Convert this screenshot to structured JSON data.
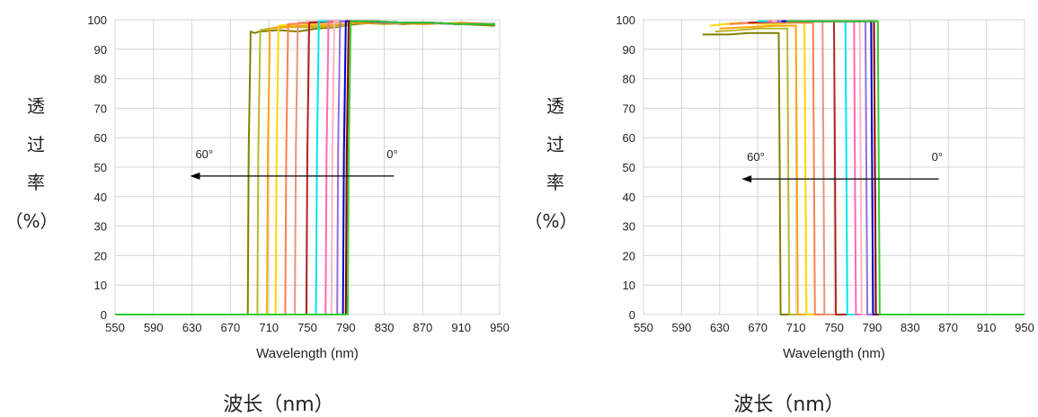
{
  "labels": {
    "y_side": [
      "透",
      "过",
      "率",
      "（%）"
    ],
    "bottom": "波长（nm）"
  },
  "chart_data": [
    {
      "type": "line",
      "title": "",
      "xlabel": "Wavelength (nm)",
      "ylabel": "",
      "xlim": [
        550,
        950
      ],
      "ylim": [
        0,
        100
      ],
      "x_ticks": [
        550,
        590,
        630,
        670,
        710,
        750,
        790,
        830,
        870,
        910,
        950
      ],
      "y_ticks": [
        0,
        10,
        20,
        30,
        40,
        50,
        60,
        70,
        80,
        90,
        100
      ],
      "grid": true,
      "annotations": {
        "arrow_from_label": "0°",
        "arrow_to_label": "60°",
        "arrow_y": 47,
        "arrow_x_start": 840,
        "arrow_x_end": 628
      },
      "series": [
        {
          "color": "#808000",
          "x": [
            550,
            688,
            689,
            691,
            695,
            700,
            720,
            740,
            760,
            780,
            800,
            820,
            850,
            880,
            910,
            945
          ],
          "y": [
            0,
            0,
            55,
            96,
            95.5,
            96,
            96.5,
            96,
            97,
            97.5,
            98.5,
            99,
            98.5,
            99,
            98.5,
            98
          ]
        },
        {
          "color": "#b8b82e",
          "x": [
            550,
            698,
            699,
            701,
            710,
            730,
            760,
            790,
            800,
            830,
            870,
            910,
            945
          ],
          "y": [
            0,
            0,
            55,
            96.5,
            97,
            97.5,
            97.5,
            98,
            99,
            98.5,
            99,
            98.5,
            98.5
          ]
        },
        {
          "color": "#ffa500",
          "x": [
            550,
            708,
            709,
            711,
            720,
            750,
            790,
            800,
            830,
            870,
            910,
            945
          ],
          "y": [
            0,
            0,
            55,
            97,
            97.5,
            98,
            98.5,
            99,
            99,
            98.5,
            99,
            98.5
          ]
        },
        {
          "color": "#ffd700",
          "x": [
            550,
            717,
            718,
            720,
            740,
            770,
            800,
            830,
            870,
            910,
            945
          ],
          "y": [
            0,
            0,
            55,
            98,
            98.5,
            99,
            99.5,
            99,
            99,
            98.5,
            98.5
          ]
        },
        {
          "color": "#ff7f50",
          "x": [
            550,
            727,
            728,
            730,
            760,
            800,
            830,
            870,
            910,
            945
          ],
          "y": [
            0,
            0,
            55,
            98.5,
            99,
            99.5,
            99,
            99,
            98.5,
            98.5
          ]
        },
        {
          "color": "#e9967a",
          "x": [
            550,
            737,
            738,
            740,
            770,
            800,
            830,
            870,
            910,
            945
          ],
          "y": [
            0,
            0,
            55,
            99,
            99.5,
            99.5,
            99,
            99,
            98.5,
            98.5
          ]
        },
        {
          "color": "#b22222",
          "x": [
            550,
            749,
            750,
            752,
            780,
            800,
            830,
            870,
            910,
            945
          ],
          "y": [
            0,
            0,
            55,
            99,
            99.5,
            99.5,
            99,
            99,
            98.5,
            98.5
          ]
        },
        {
          "color": "#00e5ee",
          "x": [
            550,
            759,
            760,
            762,
            790,
            810,
            840,
            870,
            910,
            945
          ],
          "y": [
            0,
            0,
            55,
            99.5,
            99.5,
            99.5,
            99,
            99,
            98.5,
            98.5
          ]
        },
        {
          "color": "#ff69b4",
          "x": [
            550,
            769,
            770,
            772,
            790,
            810,
            840,
            870,
            910,
            945
          ],
          "y": [
            0,
            0,
            55,
            99.5,
            99.5,
            99.5,
            99,
            99,
            98.5,
            98.5
          ]
        },
        {
          "color": "#ffb6c1",
          "x": [
            550,
            775,
            776,
            778,
            790,
            810,
            840,
            870,
            910,
            945
          ],
          "y": [
            0,
            0,
            55,
            99.5,
            99.5,
            99.5,
            99,
            99,
            98.5,
            98.5
          ]
        },
        {
          "color": "#9370db",
          "x": [
            550,
            781,
            782,
            784,
            790,
            810,
            840,
            870,
            910,
            945
          ],
          "y": [
            0,
            0,
            55,
            99.5,
            99.5,
            99.5,
            99,
            99,
            98.5,
            98.5
          ]
        },
        {
          "color": "#0000cd",
          "x": [
            550,
            787,
            788,
            790,
            800,
            820,
            850,
            880,
            910,
            945
          ],
          "y": [
            0,
            0,
            55,
            99.5,
            99.5,
            99.5,
            99,
            99,
            98.5,
            98.5
          ]
        },
        {
          "color": "#8b0000",
          "x": [
            550,
            790,
            791,
            793,
            805,
            820,
            850,
            880,
            910,
            945
          ],
          "y": [
            0,
            0,
            55,
            99.5,
            99.5,
            99.5,
            99,
            99,
            98.5,
            98.5
          ]
        },
        {
          "color": "#32cd32",
          "x": [
            550,
            792,
            793,
            795,
            805,
            820,
            850,
            880,
            910,
            945
          ],
          "y": [
            0,
            0,
            55,
            99.5,
            99.5,
            99.5,
            99,
            99,
            98.5,
            98.5
          ]
        }
      ]
    },
    {
      "type": "line",
      "title": "",
      "xlabel": "Wavelength (nm)",
      "ylabel": "",
      "xlim": [
        550,
        950
      ],
      "ylim": [
        0,
        100
      ],
      "x_ticks": [
        550,
        590,
        630,
        670,
        710,
        750,
        790,
        830,
        870,
        910,
        950
      ],
      "y_ticks": [
        0,
        10,
        20,
        30,
        40,
        50,
        60,
        70,
        80,
        90,
        100
      ],
      "grid": true,
      "annotations": {
        "arrow_from_label": "0°",
        "arrow_to_label": "60°",
        "arrow_y": 46,
        "arrow_x_start": 860,
        "arrow_x_end": 653
      },
      "series": [
        {
          "color": "#808000",
          "x": [
            612,
            640,
            660,
            680,
            692,
            693,
            694,
            950
          ],
          "y": [
            95,
            95,
            95.5,
            95.5,
            95.5,
            50,
            0,
            0
          ]
        },
        {
          "color": "#b8b82e",
          "x": [
            625,
            650,
            670,
            690,
            701,
            702,
            703,
            950
          ],
          "y": [
            96,
            96.5,
            97,
            97,
            97,
            50,
            0,
            0
          ]
        },
        {
          "color": "#ffa500",
          "x": [
            630,
            660,
            690,
            710,
            711,
            712,
            950
          ],
          "y": [
            97,
            97.5,
            98,
            98,
            50,
            0,
            0
          ]
        },
        {
          "color": "#ffd700",
          "x": [
            620,
            650,
            680,
            710,
            719,
            720,
            721,
            950
          ],
          "y": [
            98,
            99,
            98.5,
            99,
            99,
            50,
            0,
            0
          ]
        },
        {
          "color": "#ff7f50",
          "x": [
            640,
            670,
            700,
            728,
            729,
            730,
            950
          ],
          "y": [
            98.5,
            99,
            99,
            99,
            50,
            0,
            0
          ]
        },
        {
          "color": "#e9967a",
          "x": [
            650,
            680,
            710,
            738,
            739,
            740,
            950
          ],
          "y": [
            99,
            99,
            99.5,
            99.5,
            50,
            0,
            0
          ]
        },
        {
          "color": "#b22222",
          "x": [
            660,
            700,
            730,
            750,
            751,
            752,
            950
          ],
          "y": [
            99,
            99.5,
            99.5,
            99.5,
            50,
            0,
            0
          ]
        },
        {
          "color": "#00e5ee",
          "x": [
            670,
            710,
            740,
            762,
            763,
            764,
            950
          ],
          "y": [
            99.5,
            99.5,
            99.5,
            99.5,
            50,
            0,
            0
          ]
        },
        {
          "color": "#ff69b4",
          "x": [
            680,
            720,
            750,
            771,
            772,
            773,
            950
          ],
          "y": [
            99.5,
            99.5,
            99.5,
            99.5,
            50,
            0,
            0
          ]
        },
        {
          "color": "#ffb6c1",
          "x": [
            685,
            725,
            755,
            777,
            778,
            779,
            950
          ],
          "y": [
            99.5,
            99.5,
            99.5,
            99.5,
            50,
            0,
            0
          ]
        },
        {
          "color": "#9370db",
          "x": [
            690,
            730,
            760,
            783,
            784,
            785,
            950
          ],
          "y": [
            99.5,
            99.5,
            99.5,
            99.5,
            50,
            0,
            0
          ]
        },
        {
          "color": "#0000cd",
          "x": [
            695,
            735,
            765,
            789,
            790,
            791,
            950
          ],
          "y": [
            99.5,
            99.5,
            99.5,
            99.5,
            50,
            0,
            0
          ]
        },
        {
          "color": "#8b0000",
          "x": [
            700,
            740,
            770,
            792,
            793,
            794,
            950
          ],
          "y": [
            99.5,
            99.5,
            99.5,
            99.5,
            50,
            0,
            0
          ]
        },
        {
          "color": "#32cd32",
          "x": [
            700,
            740,
            770,
            796,
            797,
            798,
            950
          ],
          "y": [
            99.5,
            99.5,
            99.5,
            99.5,
            50,
            0,
            0
          ]
        }
      ]
    }
  ]
}
